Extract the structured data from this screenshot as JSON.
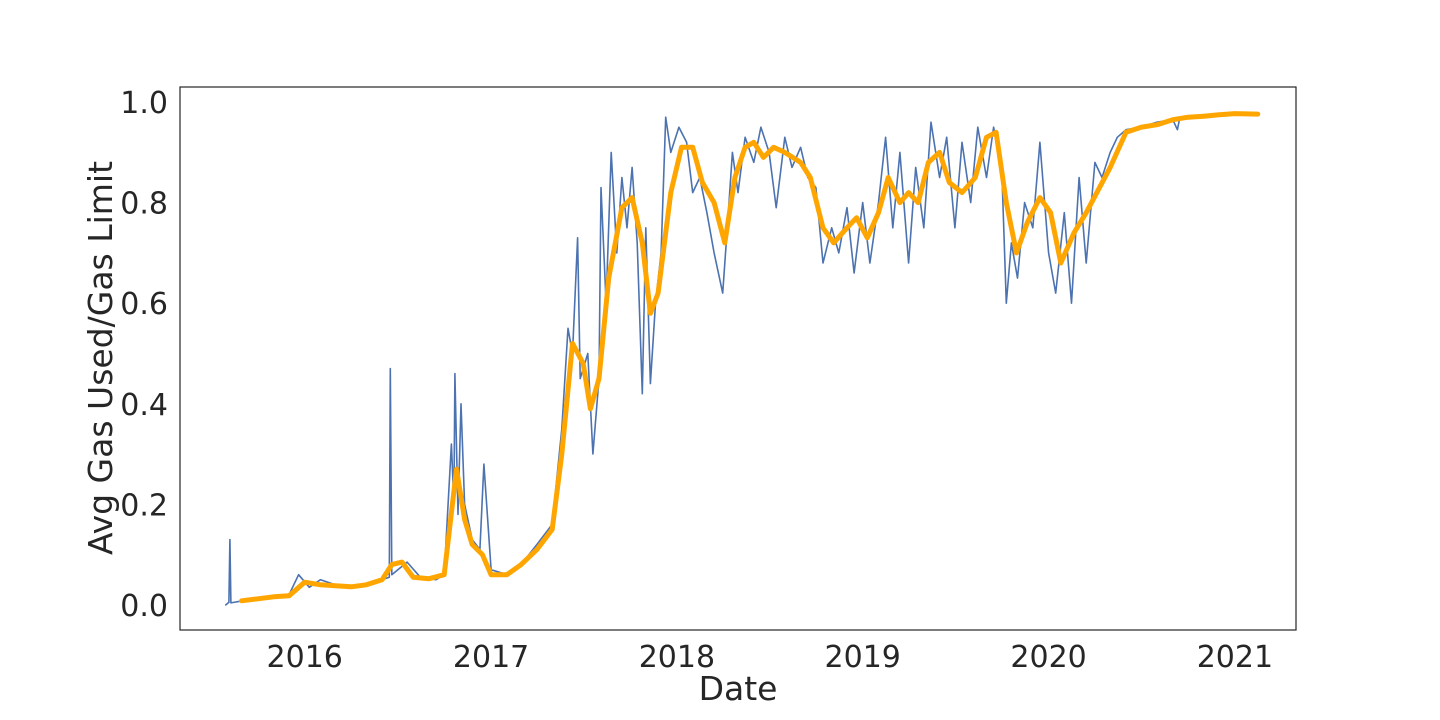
{
  "chart_data": {
    "type": "line",
    "title": "",
    "xlabel": "Date",
    "ylabel": "Avg Gas Used/Gas Limit",
    "xlim": [
      "2015-05-01",
      "2021-05-01"
    ],
    "ylim": [
      -0.05,
      1.03
    ],
    "x_ticks": [
      "2016",
      "2017",
      "2018",
      "2019",
      "2020",
      "2021"
    ],
    "y_ticks": [
      "0.0",
      "0.2",
      "0.4",
      "0.6",
      "0.8",
      "1.0"
    ],
    "y_tick_values": [
      0.0,
      0.2,
      0.4,
      0.6,
      0.8,
      1.0
    ],
    "grid": false,
    "legend": "none",
    "colors": {
      "daily": "#4c72b0",
      "smoothed": "#ffa500",
      "axis": "#262626"
    },
    "series": [
      {
        "role": "daily",
        "points": [
          [
            "2015-07-30",
            0.0
          ],
          [
            "2015-08-05",
            0.005
          ],
          [
            "2015-08-07",
            0.13
          ],
          [
            "2015-08-09",
            0.004
          ],
          [
            "2015-09-01",
            0.008
          ],
          [
            "2015-10-01",
            0.012
          ],
          [
            "2015-11-01",
            0.018
          ],
          [
            "2015-12-01",
            0.02
          ],
          [
            "2015-12-20",
            0.06
          ],
          [
            "2016-01-10",
            0.035
          ],
          [
            "2016-02-01",
            0.05
          ],
          [
            "2016-03-01",
            0.04
          ],
          [
            "2016-04-01",
            0.035
          ],
          [
            "2016-05-01",
            0.04
          ],
          [
            "2016-06-01",
            0.05
          ],
          [
            "2016-06-15",
            0.055
          ],
          [
            "2016-06-17",
            0.47
          ],
          [
            "2016-06-20",
            0.06
          ],
          [
            "2016-07-20",
            0.085
          ],
          [
            "2016-08-15",
            0.055
          ],
          [
            "2016-09-15",
            0.05
          ],
          [
            "2016-10-01",
            0.06
          ],
          [
            "2016-10-15",
            0.32
          ],
          [
            "2016-10-20",
            0.2
          ],
          [
            "2016-10-22",
            0.46
          ],
          [
            "2016-10-28",
            0.18
          ],
          [
            "2016-11-03",
            0.4
          ],
          [
            "2016-11-10",
            0.2
          ],
          [
            "2016-11-25",
            0.13
          ],
          [
            "2016-12-10",
            0.11
          ],
          [
            "2016-12-18",
            0.28
          ],
          [
            "2017-01-01",
            0.07
          ],
          [
            "2017-02-01",
            0.06
          ],
          [
            "2017-03-01",
            0.08
          ],
          [
            "2017-04-01",
            0.12
          ],
          [
            "2017-05-01",
            0.16
          ],
          [
            "2017-05-20",
            0.35
          ],
          [
            "2017-06-01",
            0.55
          ],
          [
            "2017-06-10",
            0.5
          ],
          [
            "2017-06-20",
            0.73
          ],
          [
            "2017-06-25",
            0.45
          ],
          [
            "2017-07-10",
            0.5
          ],
          [
            "2017-07-20",
            0.3
          ],
          [
            "2017-08-01",
            0.45
          ],
          [
            "2017-08-05",
            0.83
          ],
          [
            "2017-08-15",
            0.6
          ],
          [
            "2017-08-25",
            0.9
          ],
          [
            "2017-09-05",
            0.7
          ],
          [
            "2017-09-15",
            0.85
          ],
          [
            "2017-09-25",
            0.75
          ],
          [
            "2017-10-05",
            0.87
          ],
          [
            "2017-10-15",
            0.72
          ],
          [
            "2017-10-25",
            0.42
          ],
          [
            "2017-11-01",
            0.75
          ],
          [
            "2017-11-10",
            0.44
          ],
          [
            "2017-11-20",
            0.6
          ],
          [
            "2017-12-01",
            0.7
          ],
          [
            "2017-12-10",
            0.97
          ],
          [
            "2017-12-20",
            0.9
          ],
          [
            "2018-01-05",
            0.95
          ],
          [
            "2018-01-20",
            0.92
          ],
          [
            "2018-02-01",
            0.82
          ],
          [
            "2018-02-15",
            0.85
          ],
          [
            "2018-03-01",
            0.78
          ],
          [
            "2018-03-15",
            0.7
          ],
          [
            "2018-04-01",
            0.62
          ],
          [
            "2018-04-10",
            0.75
          ],
          [
            "2018-04-20",
            0.9
          ],
          [
            "2018-05-01",
            0.82
          ],
          [
            "2018-05-15",
            0.93
          ],
          [
            "2018-06-01",
            0.88
          ],
          [
            "2018-06-15",
            0.95
          ],
          [
            "2018-07-01",
            0.9
          ],
          [
            "2018-07-15",
            0.79
          ],
          [
            "2018-08-01",
            0.93
          ],
          [
            "2018-08-15",
            0.87
          ],
          [
            "2018-09-01",
            0.91
          ],
          [
            "2018-09-15",
            0.85
          ],
          [
            "2018-10-01",
            0.83
          ],
          [
            "2018-10-15",
            0.68
          ],
          [
            "2018-11-01",
            0.75
          ],
          [
            "2018-11-15",
            0.7
          ],
          [
            "2018-12-01",
            0.79
          ],
          [
            "2018-12-15",
            0.66
          ],
          [
            "2019-01-01",
            0.8
          ],
          [
            "2019-01-15",
            0.68
          ],
          [
            "2019-02-01",
            0.8
          ],
          [
            "2019-02-15",
            0.93
          ],
          [
            "2019-03-01",
            0.75
          ],
          [
            "2019-03-15",
            0.9
          ],
          [
            "2019-04-01",
            0.68
          ],
          [
            "2019-04-15",
            0.87
          ],
          [
            "2019-05-01",
            0.75
          ],
          [
            "2019-05-15",
            0.96
          ],
          [
            "2019-06-01",
            0.85
          ],
          [
            "2019-06-15",
            0.93
          ],
          [
            "2019-07-01",
            0.75
          ],
          [
            "2019-07-15",
            0.92
          ],
          [
            "2019-08-01",
            0.8
          ],
          [
            "2019-08-15",
            0.95
          ],
          [
            "2019-09-01",
            0.85
          ],
          [
            "2019-09-15",
            0.95
          ],
          [
            "2019-10-01",
            0.87
          ],
          [
            "2019-10-10",
            0.6
          ],
          [
            "2019-10-20",
            0.72
          ],
          [
            "2019-11-01",
            0.65
          ],
          [
            "2019-11-15",
            0.8
          ],
          [
            "2019-12-01",
            0.75
          ],
          [
            "2019-12-15",
            0.92
          ],
          [
            "2020-01-01",
            0.7
          ],
          [
            "2020-01-15",
            0.62
          ],
          [
            "2020-02-01",
            0.78
          ],
          [
            "2020-02-15",
            0.6
          ],
          [
            "2020-03-01",
            0.85
          ],
          [
            "2020-03-15",
            0.68
          ],
          [
            "2020-04-01",
            0.88
          ],
          [
            "2020-04-15",
            0.85
          ],
          [
            "2020-05-01",
            0.9
          ],
          [
            "2020-05-15",
            0.93
          ],
          [
            "2020-06-01",
            0.945
          ],
          [
            "2020-07-01",
            0.95
          ],
          [
            "2020-08-01",
            0.96
          ],
          [
            "2020-09-01",
            0.965
          ],
          [
            "2020-09-10",
            0.945
          ],
          [
            "2020-09-15",
            0.97
          ],
          [
            "2020-10-01",
            0.972
          ],
          [
            "2020-11-01",
            0.975
          ],
          [
            "2020-12-01",
            0.976
          ],
          [
            "2021-01-01",
            0.977
          ],
          [
            "2021-02-15",
            0.978
          ]
        ]
      },
      {
        "role": "smoothed",
        "points": [
          [
            "2015-08-30",
            0.008
          ],
          [
            "2015-10-01",
            0.012
          ],
          [
            "2015-11-01",
            0.016
          ],
          [
            "2015-12-01",
            0.018
          ],
          [
            "2016-01-01",
            0.045
          ],
          [
            "2016-02-01",
            0.04
          ],
          [
            "2016-03-01",
            0.038
          ],
          [
            "2016-04-01",
            0.036
          ],
          [
            "2016-05-01",
            0.04
          ],
          [
            "2016-06-01",
            0.05
          ],
          [
            "2016-06-20",
            0.08
          ],
          [
            "2016-07-10",
            0.085
          ],
          [
            "2016-08-01",
            0.055
          ],
          [
            "2016-09-01",
            0.052
          ],
          [
            "2016-10-01",
            0.06
          ],
          [
            "2016-10-25",
            0.27
          ],
          [
            "2016-11-10",
            0.17
          ],
          [
            "2016-11-25",
            0.12
          ],
          [
            "2016-12-15",
            0.1
          ],
          [
            "2017-01-01",
            0.06
          ],
          [
            "2017-02-01",
            0.06
          ],
          [
            "2017-03-01",
            0.08
          ],
          [
            "2017-04-01",
            0.11
          ],
          [
            "2017-05-01",
            0.15
          ],
          [
            "2017-05-20",
            0.3
          ],
          [
            "2017-06-10",
            0.52
          ],
          [
            "2017-07-01",
            0.48
          ],
          [
            "2017-07-15",
            0.39
          ],
          [
            "2017-08-01",
            0.45
          ],
          [
            "2017-08-20",
            0.65
          ],
          [
            "2017-09-15",
            0.79
          ],
          [
            "2017-10-05",
            0.81
          ],
          [
            "2017-10-25",
            0.72
          ],
          [
            "2017-11-10",
            0.58
          ],
          [
            "2017-11-25",
            0.62
          ],
          [
            "2017-12-20",
            0.82
          ],
          [
            "2018-01-10",
            0.91
          ],
          [
            "2018-02-01",
            0.91
          ],
          [
            "2018-02-20",
            0.84
          ],
          [
            "2018-03-15",
            0.8
          ],
          [
            "2018-04-05",
            0.72
          ],
          [
            "2018-04-25",
            0.85
          ],
          [
            "2018-05-15",
            0.91
          ],
          [
            "2018-06-01",
            0.92
          ],
          [
            "2018-06-20",
            0.89
          ],
          [
            "2018-07-10",
            0.91
          ],
          [
            "2018-08-01",
            0.9
          ],
          [
            "2018-09-01",
            0.88
          ],
          [
            "2018-09-20",
            0.85
          ],
          [
            "2018-10-15",
            0.75
          ],
          [
            "2018-11-05",
            0.72
          ],
          [
            "2018-12-01",
            0.75
          ],
          [
            "2018-12-20",
            0.77
          ],
          [
            "2019-01-10",
            0.73
          ],
          [
            "2019-02-01",
            0.78
          ],
          [
            "2019-02-20",
            0.85
          ],
          [
            "2019-03-15",
            0.8
          ],
          [
            "2019-04-01",
            0.82
          ],
          [
            "2019-04-20",
            0.8
          ],
          [
            "2019-05-10",
            0.88
          ],
          [
            "2019-06-01",
            0.9
          ],
          [
            "2019-06-20",
            0.84
          ],
          [
            "2019-07-15",
            0.82
          ],
          [
            "2019-08-10",
            0.85
          ],
          [
            "2019-09-01",
            0.93
          ],
          [
            "2019-09-20",
            0.94
          ],
          [
            "2019-10-10",
            0.8
          ],
          [
            "2019-10-30",
            0.7
          ],
          [
            "2019-11-20",
            0.76
          ],
          [
            "2019-12-15",
            0.81
          ],
          [
            "2020-01-05",
            0.78
          ],
          [
            "2020-01-25",
            0.68
          ],
          [
            "2020-02-20",
            0.74
          ],
          [
            "2020-03-15",
            0.78
          ],
          [
            "2020-04-10",
            0.83
          ],
          [
            "2020-05-01",
            0.87
          ],
          [
            "2020-06-01",
            0.94
          ],
          [
            "2020-07-01",
            0.95
          ],
          [
            "2020-08-01",
            0.955
          ],
          [
            "2020-09-01",
            0.965
          ],
          [
            "2020-10-01",
            0.97
          ],
          [
            "2020-11-01",
            0.972
          ],
          [
            "2020-12-01",
            0.975
          ],
          [
            "2021-01-01",
            0.977
          ],
          [
            "2021-02-15",
            0.976
          ]
        ]
      }
    ]
  }
}
